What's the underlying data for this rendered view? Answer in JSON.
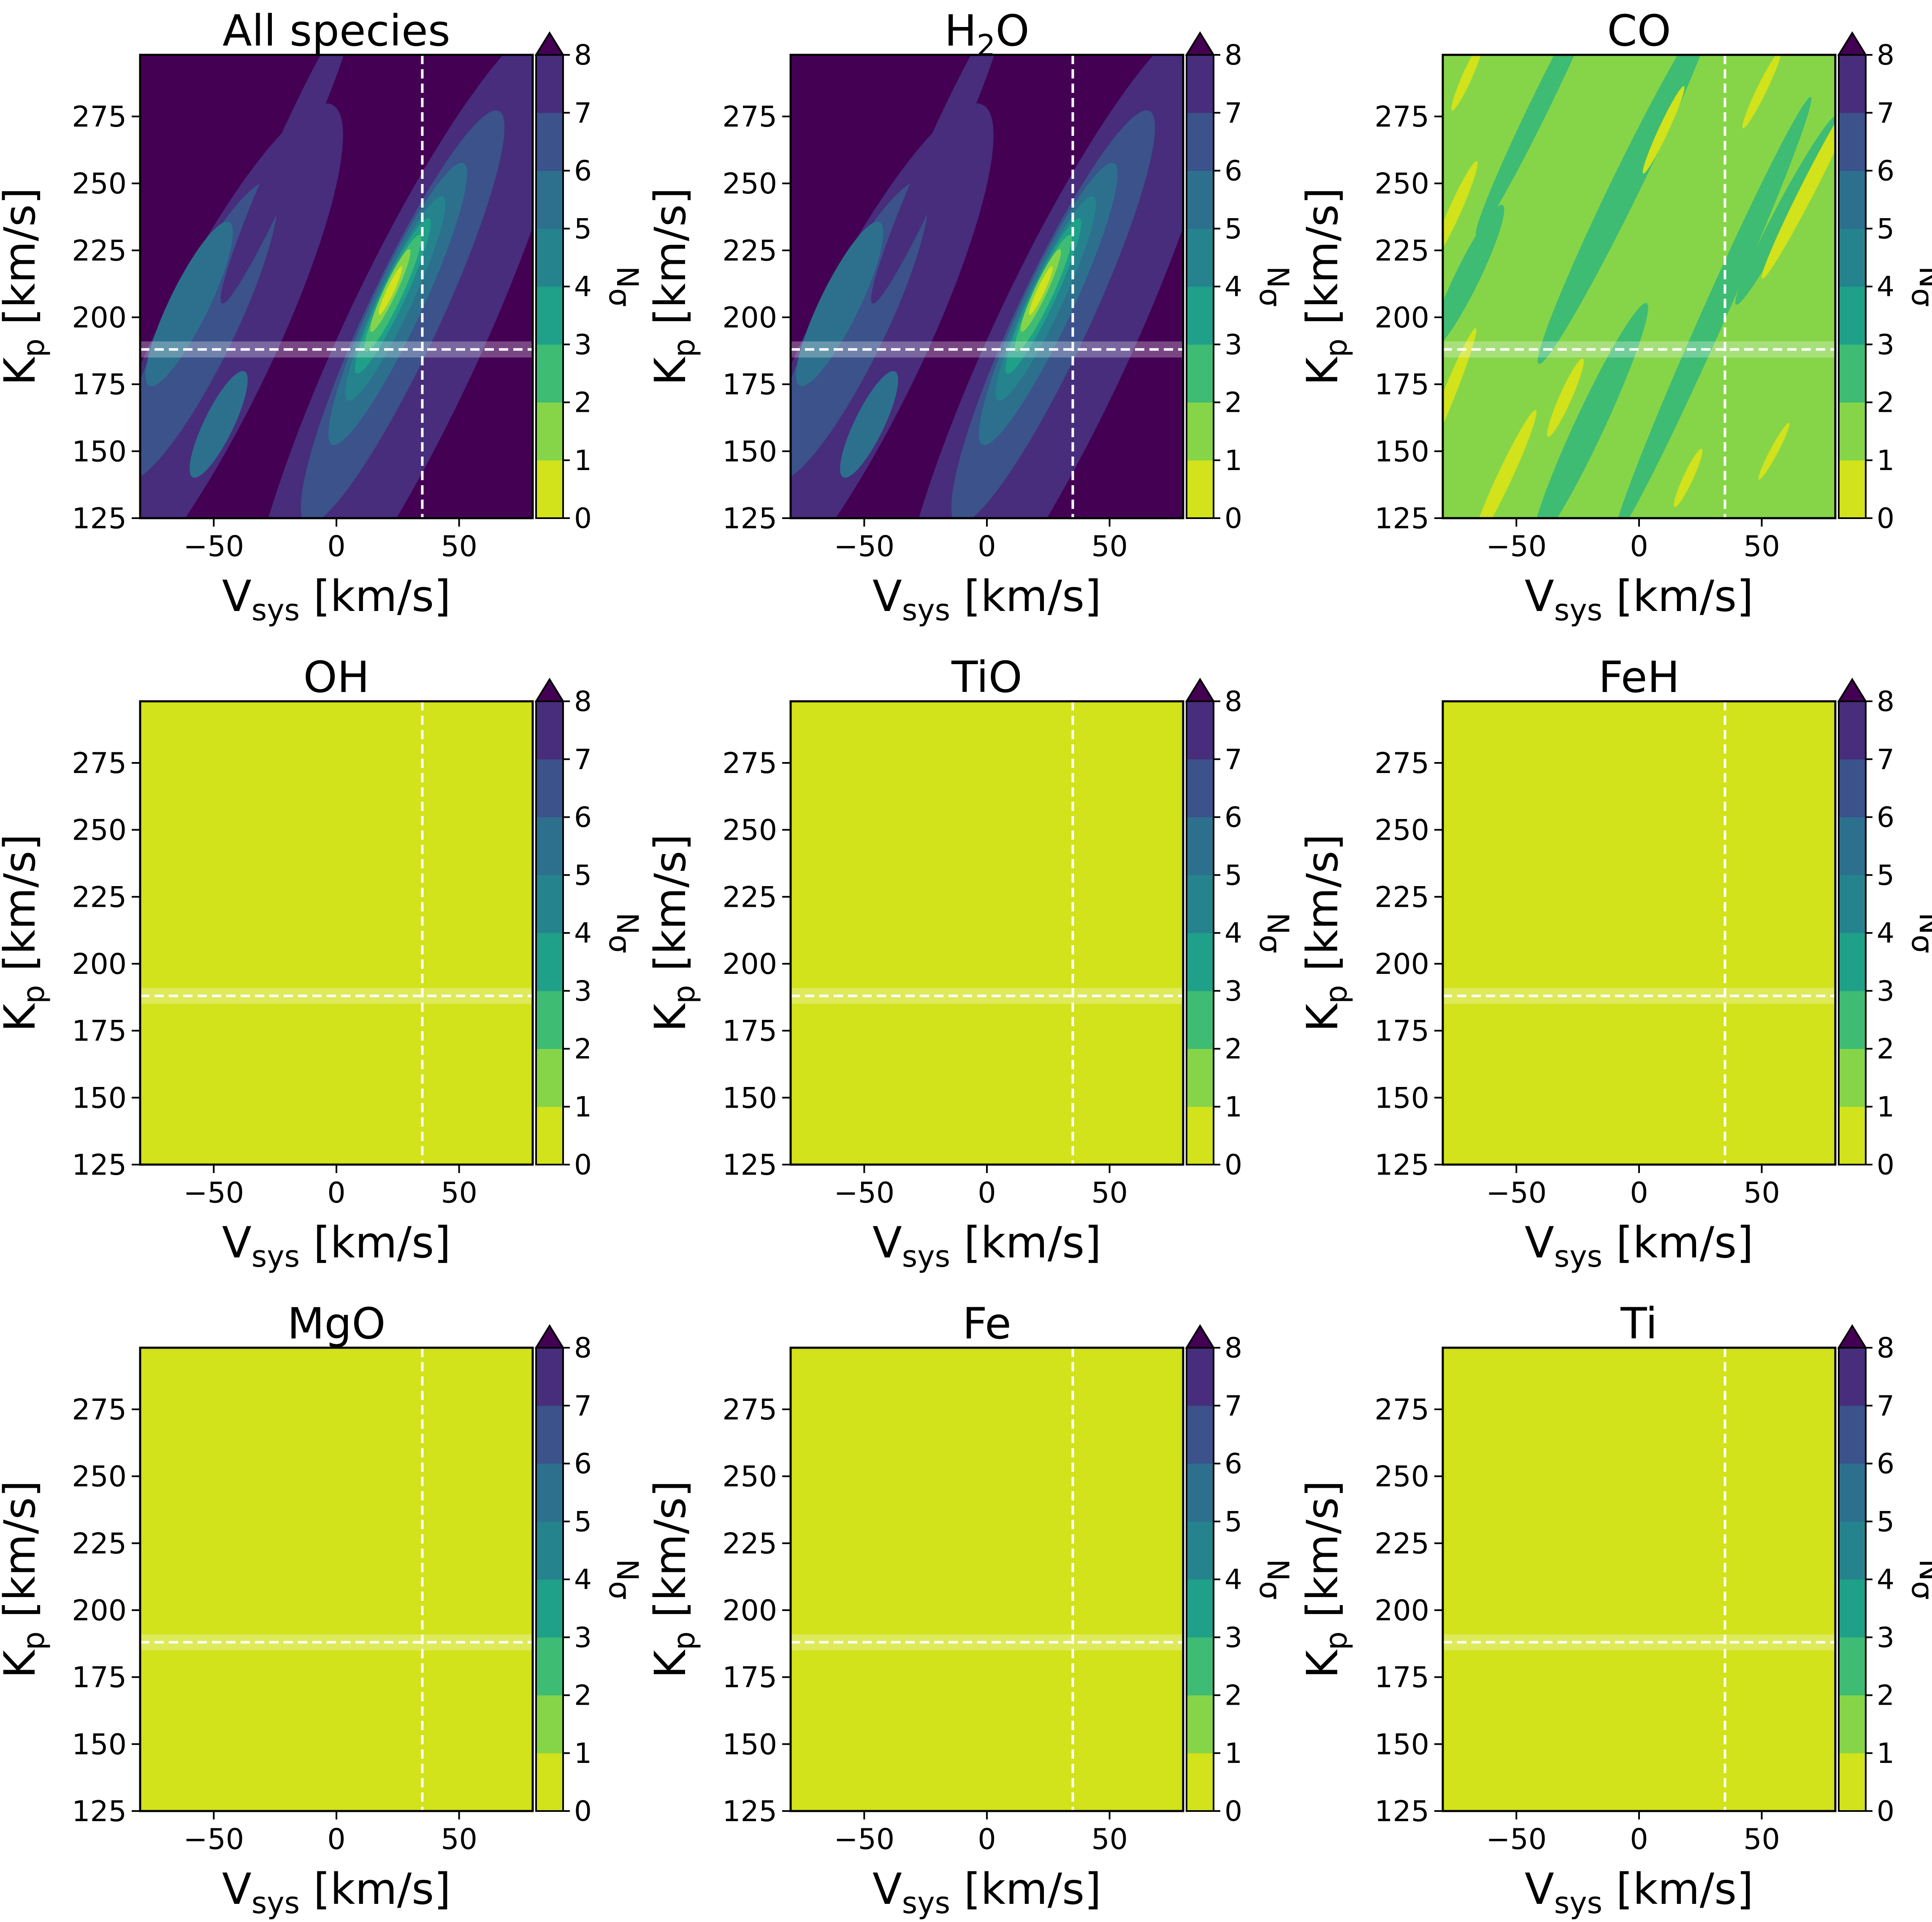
{
  "figure": {
    "background": "#ffffff",
    "frame_color": "#000000"
  },
  "panels": [
    {
      "title": "All species",
      "title_main": "All species",
      "title_sub": "",
      "title_tail": "",
      "pattern": "all"
    },
    {
      "title": "H2O",
      "title_main": "H",
      "title_sub": "2",
      "title_tail": "O",
      "pattern": "h2o"
    },
    {
      "title": "CO",
      "title_main": "CO",
      "title_sub": "",
      "title_tail": "",
      "pattern": "co"
    },
    {
      "title": "OH",
      "title_main": "OH",
      "title_sub": "",
      "title_tail": "",
      "pattern": "flat"
    },
    {
      "title": "TiO",
      "title_main": "TiO",
      "title_sub": "",
      "title_tail": "",
      "pattern": "flat"
    },
    {
      "title": "FeH",
      "title_main": "FeH",
      "title_sub": "",
      "title_tail": "",
      "pattern": "flat"
    },
    {
      "title": "MgO",
      "title_main": "MgO",
      "title_sub": "",
      "title_tail": "",
      "pattern": "flat"
    },
    {
      "title": "Fe",
      "title_main": "Fe",
      "title_sub": "",
      "title_tail": "",
      "pattern": "flat"
    },
    {
      "title": "Ti",
      "title_main": "Ti",
      "title_sub": "",
      "title_tail": "",
      "pattern": "flat"
    }
  ],
  "chart_data": {
    "type": "heatmap",
    "subtype": "filled contour grid (3x3), shared axes",
    "x_axis": {
      "label_main": "V",
      "label_sub": "sys",
      "label_unit": " [km/s]",
      "range": [
        -80,
        80
      ],
      "ticks": [
        -50,
        0,
        50
      ],
      "tick_labels": [
        "−50",
        "0",
        "50"
      ]
    },
    "y_axis": {
      "label_main": "K",
      "label_sub": "p",
      "label_unit": " [km/s]",
      "range": [
        125,
        298
      ],
      "ticks": [
        125,
        150,
        175,
        200,
        225,
        250,
        275
      ],
      "tick_labels": [
        "125",
        "150",
        "175",
        "200",
        "225",
        "250",
        "275"
      ]
    },
    "colorbar": {
      "label_main": "N",
      "label_sub": "σ",
      "levels": [
        0,
        1,
        2,
        3,
        4,
        5,
        6,
        7,
        8
      ],
      "tick_labels": [
        "0",
        "1",
        "2",
        "3",
        "4",
        "5",
        "6",
        "7",
        "8"
      ],
      "colors": [
        "#d2e21b",
        "#86d549",
        "#3fbc73",
        "#1fa088",
        "#25838e",
        "#2d708e",
        "#3b528b",
        "#472d7b",
        "#440154"
      ],
      "extend": "max",
      "extend_color": "#440154"
    },
    "reference_lines": {
      "vsys": 35,
      "kp": 188,
      "kp_band": [
        185,
        191
      ],
      "color": "#ffffff",
      "style": "dashed"
    },
    "panel_values": {
      "All species": {
        "background_level": 8,
        "peak_level": 0,
        "peak_vsys": 22,
        "peak_kp": 210
      },
      "H2O": {
        "background_level": 8,
        "peak_level": 0,
        "peak_vsys": 22,
        "peak_kp": 210
      },
      "CO": {
        "background_level": 1,
        "min_level": 0,
        "max_level": 3
      },
      "OH": {
        "background_level": 0
      },
      "TiO": {
        "background_level": 0
      },
      "FeH": {
        "background_level": 0
      },
      "MgO": {
        "background_level": 0
      },
      "Fe": {
        "background_level": 0
      },
      "Ti": {
        "background_level": 0
      }
    }
  }
}
